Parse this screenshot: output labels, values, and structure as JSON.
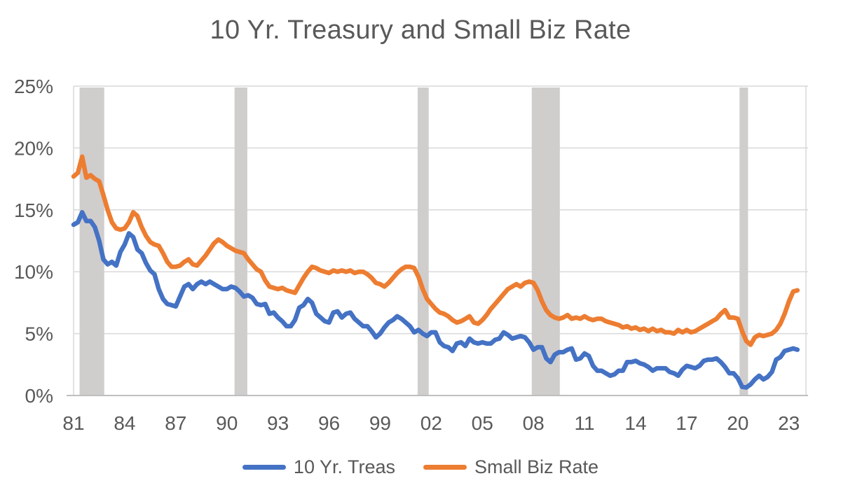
{
  "title": "10 Yr. Treasury and Small Biz Rate",
  "colors": {
    "treasury_line": "#4472C4",
    "small_biz_line": "#ED7D31",
    "recession_band": "#D0CDCD",
    "gridline": "#D9D9D9",
    "axis_line": "#BFBFBF",
    "text": "#595959",
    "background": "#FFFFFF"
  },
  "legend": {
    "items": [
      {
        "label": "10 Yr. Treas",
        "color": "#4472C4"
      },
      {
        "label": "Small Biz Rate",
        "color": "#ED7D31"
      }
    ]
  },
  "chart_data": {
    "type": "line",
    "title": "10 Yr. Treasury and Small Biz Rate",
    "xlabel": "",
    "ylabel": "",
    "x_unit": "year",
    "x_start": 1981.0,
    "x_step": 0.25,
    "xlim": [
      1981,
      2024
    ],
    "ylim": [
      0,
      25
    ],
    "grid": "horizontal",
    "legend_position": "bottom",
    "y_ticks": [
      0,
      5,
      10,
      15,
      20,
      25
    ],
    "y_tick_labels": [
      "0%",
      "5%",
      "10%",
      "15%",
      "20%",
      "25%"
    ],
    "x_ticks": [
      1981,
      1984,
      1987,
      1990,
      1993,
      1996,
      1999,
      2002,
      2005,
      2008,
      2011,
      2014,
      2017,
      2020,
      2023
    ],
    "x_tick_labels": [
      "81",
      "84",
      "87",
      "90",
      "93",
      "96",
      "99",
      "02",
      "05",
      "08",
      "11",
      "14",
      "17",
      "20",
      "23"
    ],
    "recession_bands": [
      [
        1981.35,
        1982.8
      ],
      [
        1990.45,
        1991.2
      ],
      [
        2001.2,
        2001.85
      ],
      [
        2007.9,
        2009.55
      ],
      [
        2020.1,
        2020.6
      ]
    ],
    "series": [
      {
        "name": "10 Yr. Treas",
        "color": "#4472C4",
        "values": [
          13.8,
          14.0,
          14.8,
          14.1,
          14.1,
          13.6,
          12.5,
          11.0,
          10.6,
          10.8,
          10.5,
          11.6,
          12.2,
          13.1,
          12.8,
          11.8,
          11.5,
          10.7,
          10.1,
          9.8,
          8.6,
          7.8,
          7.4,
          7.3,
          7.2,
          8.0,
          8.8,
          9.0,
          8.6,
          9.0,
          9.2,
          9.0,
          9.2,
          9.0,
          8.8,
          8.6,
          8.6,
          8.8,
          8.7,
          8.4,
          8.0,
          8.1,
          7.9,
          7.4,
          7.3,
          7.4,
          6.6,
          6.7,
          6.3,
          6.0,
          5.6,
          5.6,
          6.1,
          7.1,
          7.3,
          7.8,
          7.5,
          6.6,
          6.3,
          6.0,
          5.9,
          6.7,
          6.8,
          6.3,
          6.6,
          6.7,
          6.2,
          5.9,
          5.6,
          5.6,
          5.2,
          4.7,
          5.0,
          5.5,
          5.9,
          6.1,
          6.4,
          6.2,
          5.9,
          5.6,
          5.1,
          5.3,
          5.0,
          4.8,
          5.1,
          5.1,
          4.3,
          4.0,
          3.9,
          3.6,
          4.2,
          4.3,
          4.0,
          4.6,
          4.3,
          4.2,
          4.3,
          4.2,
          4.2,
          4.5,
          4.6,
          5.1,
          4.9,
          4.6,
          4.7,
          4.8,
          4.7,
          4.3,
          3.7,
          3.9,
          3.9,
          3.0,
          2.7,
          3.3,
          3.5,
          3.5,
          3.7,
          3.8,
          2.9,
          3.0,
          3.4,
          3.2,
          2.4,
          2.0,
          2.0,
          1.8,
          1.6,
          1.7,
          2.0,
          2.0,
          2.7,
          2.7,
          2.8,
          2.6,
          2.5,
          2.3,
          2.0,
          2.2,
          2.2,
          2.2,
          1.9,
          1.8,
          1.6,
          2.1,
          2.4,
          2.3,
          2.2,
          2.4,
          2.8,
          2.9,
          2.9,
          3.0,
          2.7,
          2.3,
          1.8,
          1.8,
          1.4,
          0.7,
          0.65,
          0.9,
          1.3,
          1.6,
          1.3,
          1.5,
          1.9,
          2.9,
          3.1,
          3.6,
          3.7,
          3.8,
          3.7
        ]
      },
      {
        "name": "Small Biz Rate",
        "color": "#ED7D31",
        "values": [
          17.7,
          18.0,
          19.3,
          17.6,
          17.8,
          17.5,
          17.3,
          16.2,
          15.0,
          14.0,
          13.5,
          13.4,
          13.5,
          14.0,
          14.8,
          14.5,
          13.6,
          12.9,
          12.4,
          12.2,
          12.1,
          11.5,
          10.8,
          10.4,
          10.4,
          10.5,
          10.8,
          11.0,
          10.6,
          10.5,
          10.9,
          11.3,
          11.8,
          12.3,
          12.6,
          12.4,
          12.1,
          11.9,
          11.7,
          11.6,
          11.5,
          11.0,
          10.6,
          10.2,
          10.0,
          9.3,
          8.8,
          8.7,
          8.6,
          8.7,
          8.5,
          8.4,
          8.3,
          8.9,
          9.5,
          10.0,
          10.4,
          10.3,
          10.1,
          10.0,
          9.9,
          10.1,
          10.0,
          10.1,
          10.0,
          10.1,
          9.9,
          10.0,
          10.0,
          9.8,
          9.5,
          9.1,
          9.0,
          8.8,
          9.1,
          9.5,
          9.9,
          10.2,
          10.4,
          10.4,
          10.3,
          9.6,
          8.6,
          7.8,
          7.4,
          7.0,
          6.7,
          6.6,
          6.4,
          6.1,
          5.9,
          6.0,
          6.2,
          6.4,
          5.9,
          5.8,
          6.1,
          6.5,
          7.0,
          7.4,
          7.8,
          8.2,
          8.6,
          8.8,
          9.0,
          8.8,
          9.1,
          9.2,
          9.1,
          8.5,
          7.6,
          6.9,
          6.5,
          6.3,
          6.2,
          6.3,
          6.5,
          6.2,
          6.3,
          6.2,
          6.4,
          6.2,
          6.1,
          6.2,
          6.2,
          6.0,
          5.9,
          5.8,
          5.7,
          5.5,
          5.6,
          5.4,
          5.5,
          5.3,
          5.4,
          5.2,
          5.4,
          5.2,
          5.3,
          5.1,
          5.1,
          5.0,
          5.3,
          5.1,
          5.3,
          5.1,
          5.2,
          5.4,
          5.6,
          5.8,
          6.0,
          6.2,
          6.6,
          6.9,
          6.3,
          6.3,
          6.2,
          5.2,
          4.4,
          4.1,
          4.7,
          4.9,
          4.8,
          4.9,
          5.0,
          5.3,
          5.8,
          6.6,
          7.6,
          8.4,
          8.5
        ]
      }
    ]
  }
}
